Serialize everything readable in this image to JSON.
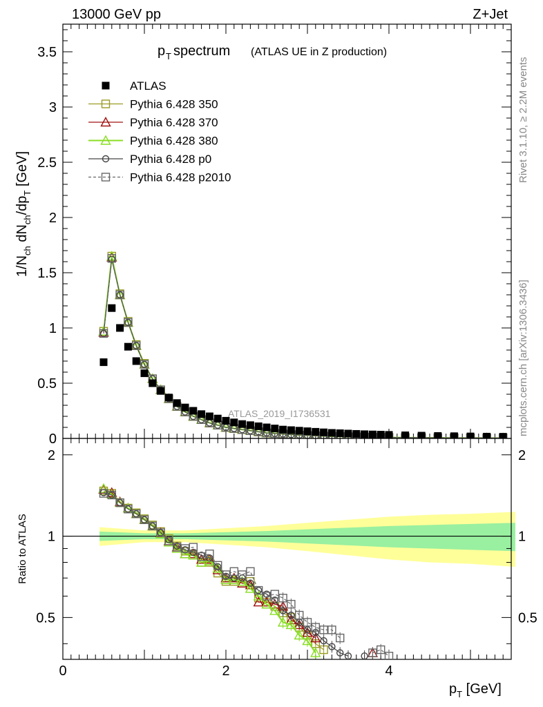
{
  "header": {
    "energy": "13000 GeV pp",
    "process": "Z+Jet",
    "title_main": "p",
    "title_sub": "T",
    "title_rest": " spectrum",
    "title_small": "(ATLAS UE in Z production)",
    "watermark": "ATLAS_2019_I1736531",
    "side_rivet": "Rivet 3.1.10, ≥ 2.2M events",
    "side_mcplots": "mcplots.cern.ch [arXiv:1306.3436]"
  },
  "axes": {
    "ylabel_main": "1/N_ch dN_ch/dp_T [GeV]",
    "ylabel_ratio": "Ratio to ATLAS",
    "xlabel": "p_T [GeV]",
    "x_ticks": [
      "0",
      "2",
      "4"
    ],
    "main_y_ticks": [
      "0",
      "0.5",
      "1",
      "1.5",
      "2",
      "2.5",
      "3",
      "3.5"
    ],
    "ratio_y_ticks": [
      "0.5",
      "1",
      "2"
    ]
  },
  "legend": {
    "entries": [
      {
        "label": "ATLAS",
        "marker": "square-filled",
        "color": "#000000"
      },
      {
        "label": "Pythia 6.428 350",
        "marker": "square-open",
        "color": "#9a9a22"
      },
      {
        "label": "Pythia 6.428 370",
        "marker": "triangle-open",
        "color": "#a01010"
      },
      {
        "label": "Pythia 6.428 380",
        "marker": "triangle-open",
        "color": "#88dd22"
      },
      {
        "label": "Pythia 6.428 p0",
        "marker": "circle-open",
        "color": "#444444"
      },
      {
        "label": "Pythia 6.428 p2010",
        "marker": "square-open-dashed",
        "color": "#666666"
      }
    ]
  },
  "chart_data": {
    "type": "scatter",
    "xlim": [
      0,
      5.5
    ],
    "main_ylim": [
      0,
      3.75
    ],
    "ratio_ylim": [
      0.35,
      2.3
    ],
    "ratio_scale": "log",
    "atlas_x": [
      0.5,
      0.6,
      0.7,
      0.8,
      0.9,
      1.0,
      1.1,
      1.2,
      1.3,
      1.4,
      1.5,
      1.6,
      1.7,
      1.8,
      1.9,
      2.0,
      2.1,
      2.2,
      2.3,
      2.4,
      2.5,
      2.6,
      2.7,
      2.8,
      2.9,
      3.0,
      3.1,
      3.2,
      3.3,
      3.4,
      3.5,
      3.6,
      3.7,
      3.8,
      3.9,
      4.0,
      4.2,
      4.4,
      4.6,
      4.8,
      5.0,
      5.2,
      5.4
    ],
    "atlas_y": [
      0.69,
      1.18,
      1.0,
      0.83,
      0.7,
      0.59,
      0.5,
      0.43,
      0.37,
      0.32,
      0.28,
      0.25,
      0.22,
      0.2,
      0.18,
      0.16,
      0.145,
      0.13,
      0.12,
      0.11,
      0.1,
      0.09,
      0.08,
      0.075,
      0.07,
      0.065,
      0.06,
      0.055,
      0.05,
      0.047,
      0.044,
      0.041,
      0.038,
      0.036,
      0.034,
      0.032,
      0.028,
      0.025,
      0.022,
      0.02,
      0.018,
      0.016,
      0.015
    ],
    "mc_x": [
      0.5,
      0.6,
      0.7,
      0.8,
      0.9,
      1.0,
      1.1,
      1.2,
      1.3,
      1.4,
      1.5,
      1.6,
      1.7,
      1.8,
      1.9,
      2.0,
      2.1,
      2.2,
      2.3,
      2.4,
      2.5,
      2.6,
      2.7,
      2.8,
      2.9,
      3.0,
      3.1,
      3.2,
      3.3,
      3.4,
      3.5,
      3.6,
      3.7,
      3.8,
      3.9,
      4.0,
      4.2,
      4.4,
      4.6,
      4.8,
      5.0,
      5.2,
      5.4
    ],
    "series": [
      {
        "name": "Pythia 6.428 350",
        "y": [
          0.97,
          1.65,
          1.31,
          1.06,
          0.85,
          0.68,
          0.54,
          0.44,
          0.36,
          0.29,
          0.24,
          0.2,
          0.17,
          0.14,
          0.12,
          0.1,
          0.09,
          0.08,
          0.07,
          0.06,
          0.05,
          0.045,
          0.04,
          0.035,
          0.03,
          0.027,
          0.024,
          0.021,
          0.019,
          0.017,
          0.015,
          0.014,
          0.012,
          0.011,
          0.01,
          0.009,
          0.008,
          0.007,
          0.006,
          0.005,
          0.005,
          0.004,
          0.004
        ],
        "ratio": [
          1.47,
          1.44,
          1.33,
          1.27,
          1.22,
          1.16,
          1.1,
          1.04,
          0.98,
          0.92,
          0.88,
          0.86,
          0.8,
          0.8,
          0.73,
          0.68,
          0.68,
          0.67,
          0.68,
          0.59,
          0.57,
          0.55,
          0.52,
          0.5,
          0.46,
          0.43,
          0.4,
          0.38,
          null,
          null,
          null,
          null,
          null,
          null,
          null,
          null,
          null,
          null,
          null,
          null,
          null,
          null,
          null
        ]
      },
      {
        "name": "Pythia 6.428 370",
        "y": [
          0.96,
          1.64,
          1.3,
          1.05,
          0.84,
          0.67,
          0.54,
          0.44,
          0.36,
          0.29,
          0.24,
          0.2,
          0.17,
          0.14,
          0.12,
          0.1,
          0.09,
          0.08,
          0.07,
          0.06,
          0.05,
          0.045,
          0.04,
          0.035,
          0.03,
          0.027,
          0.024,
          0.021,
          0.019,
          0.017,
          0.015,
          0.014,
          0.012,
          0.011,
          0.01,
          0.009,
          0.008,
          0.007,
          0.006,
          0.005,
          0.005,
          0.004,
          0.004
        ],
        "ratio": [
          1.49,
          1.45,
          1.34,
          1.27,
          1.21,
          1.15,
          1.09,
          1.03,
          0.96,
          0.91,
          0.86,
          0.86,
          0.82,
          0.82,
          0.75,
          0.7,
          0.7,
          0.67,
          0.66,
          0.57,
          0.57,
          0.56,
          0.55,
          0.49,
          0.47,
          0.44,
          0.42,
          null,
          null,
          null,
          null,
          null,
          null,
          0.37,
          null,
          null,
          null,
          null,
          null,
          null,
          null,
          null,
          null
        ]
      },
      {
        "name": "Pythia 6.428 380",
        "y": [
          0.97,
          1.65,
          1.3,
          1.05,
          0.84,
          0.67,
          0.54,
          0.44,
          0.36,
          0.29,
          0.24,
          0.2,
          0.17,
          0.14,
          0.12,
          0.1,
          0.09,
          0.08,
          0.07,
          0.06,
          0.05,
          0.045,
          0.04,
          0.035,
          0.03,
          0.027,
          0.024,
          0.021,
          0.019,
          0.017,
          0.015,
          0.014,
          0.012,
          0.011,
          0.01,
          0.009,
          0.008,
          0.007,
          0.006,
          0.005,
          0.005,
          0.004,
          0.004
        ],
        "ratio": [
          1.5,
          1.43,
          1.33,
          1.27,
          1.21,
          1.15,
          1.09,
          1.02,
          0.95,
          0.9,
          0.86,
          0.85,
          0.8,
          0.81,
          0.76,
          0.69,
          0.69,
          0.68,
          0.64,
          0.6,
          0.56,
          0.53,
          0.48,
          0.47,
          0.43,
          0.41,
          0.37,
          null,
          null,
          null,
          null,
          null,
          null,
          null,
          null,
          null,
          null,
          null,
          null,
          null,
          null,
          null,
          null
        ]
      },
      {
        "name": "Pythia 6.428 p0",
        "y": [
          0.95,
          1.62,
          1.3,
          1.05,
          0.84,
          0.67,
          0.54,
          0.44,
          0.36,
          0.29,
          0.24,
          0.2,
          0.17,
          0.14,
          0.12,
          0.1,
          0.09,
          0.08,
          0.07,
          0.06,
          0.05,
          0.045,
          0.04,
          0.035,
          0.03,
          0.027,
          0.024,
          0.021,
          0.019,
          0.017,
          0.015,
          0.014,
          0.012,
          0.011,
          0.01,
          0.009,
          0.008,
          0.007,
          0.006,
          0.005,
          0.005,
          0.004,
          0.004
        ],
        "ratio": [
          1.45,
          1.42,
          1.33,
          1.26,
          1.21,
          1.15,
          1.09,
          1.03,
          0.97,
          0.92,
          0.89,
          0.87,
          0.85,
          0.83,
          0.77,
          0.71,
          0.7,
          0.7,
          0.67,
          0.63,
          0.61,
          0.58,
          0.53,
          0.51,
          0.48,
          0.45,
          0.44,
          0.41,
          0.39,
          0.37,
          0.36,
          null,
          0.36,
          null,
          null,
          null,
          null,
          null,
          null,
          null,
          null,
          null,
          null
        ]
      },
      {
        "name": "Pythia 6.428 p2010",
        "y": [
          0.95,
          1.63,
          1.3,
          1.05,
          0.84,
          0.67,
          0.54,
          0.44,
          0.36,
          0.29,
          0.24,
          0.2,
          0.17,
          0.14,
          0.12,
          0.1,
          0.09,
          0.08,
          0.07,
          0.06,
          0.05,
          0.045,
          0.04,
          0.035,
          0.03,
          0.027,
          0.024,
          0.021,
          0.019,
          0.017,
          0.015,
          0.014,
          0.012,
          0.011,
          0.01,
          0.009,
          0.008,
          0.007,
          0.006,
          0.005,
          0.005,
          0.004,
          0.004
        ],
        "ratio": [
          1.44,
          1.42,
          1.33,
          1.26,
          1.21,
          1.15,
          1.09,
          1.03,
          0.96,
          0.91,
          0.9,
          0.91,
          0.84,
          0.86,
          0.78,
          0.72,
          0.74,
          0.72,
          0.74,
          0.63,
          0.6,
          0.61,
          0.59,
          0.56,
          0.51,
          0.48,
          0.46,
          0.45,
          0.45,
          0.42,
          null,
          null,
          null,
          0.37,
          0.38,
          0.36,
          null,
          null,
          null,
          null,
          null,
          null,
          null
        ]
      }
    ],
    "band_x": [
      0.45,
      1.0,
      1.5,
      2.0,
      2.5,
      3.0,
      3.5,
      4.0,
      4.5,
      5.0,
      5.55
    ],
    "band_inner": [
      0.04,
      0.025,
      0.025,
      0.035,
      0.045,
      0.06,
      0.075,
      0.09,
      0.1,
      0.11,
      0.12
    ],
    "band_outer": [
      0.08,
      0.05,
      0.05,
      0.07,
      0.09,
      0.12,
      0.15,
      0.18,
      0.2,
      0.21,
      0.23
    ]
  }
}
